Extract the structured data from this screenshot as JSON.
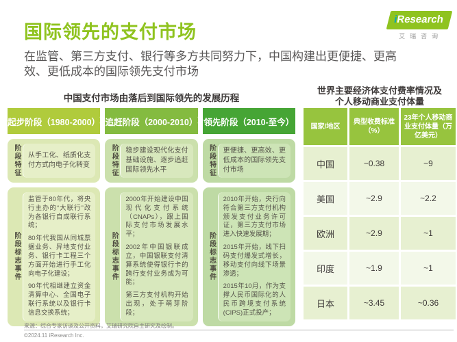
{
  "page": {
    "title": "国际领先的支付市场",
    "subtitle": "在监管、第三方支付、银行等多方共同努力下，中国构建出更便捷、更高效、更低成本的国际领先支付市场",
    "source": "来源：综合专家访谈及公开资料，艾瑞研究院自主研究及绘制。",
    "copyright": "©2024.11 iResearch Inc."
  },
  "logo": {
    "brand_i": "i",
    "brand": "Research",
    "subtext": "艾瑞咨询"
  },
  "colors": {
    "brand_green": "#8fc31f",
    "stage1_header": "#b0cb3c",
    "stage2_header": "#84bb40",
    "stage3_header": "#46a535",
    "table_header": "#97c43e",
    "row_odd": "#e7f0d1",
    "row_even": "#f3f8e9",
    "body_text": "#595757"
  },
  "timeline": {
    "title": "中国支付市场由落后到国际领先的发展历程",
    "feature_label": "阶段特征",
    "milestone_label": "阶段标志事件",
    "stages": [
      {
        "header": "起步阶段（1980-2000）",
        "feature": "从手工化、纸质化支付方式向电子化转变",
        "milestones": [
          "监管于80年代，将央行主办的“大联行”改为各银行自成联行系统；",
          "80年代我国从同城票据业务、异地支付业务、银行卡工程三个方面开始进行手工化向电子化建设；",
          "90年代相继建立资金清算中心、全国电子联行系统以及银行卡信息交换系统；"
        ]
      },
      {
        "header": "追赶阶段（2000-2010）",
        "feature": "稳步建设现代化支付基础设施、逐步追赶国际领先水平",
        "milestones": [
          "2000年开始建设中国现代化支付系统（CNAPs），跟上国际支付市场发展水平；",
          "2002年中国银联成立，中国银联支付清算系统使得银行卡的跨行支付业务成为可能；",
          "第三方支付机构开始出现，处于萌芽阶段；"
        ]
      },
      {
        "header": "领先阶段（2010-至今）",
        "feature": "更便捷、更高效、更低成本的国际领先支付市场",
        "milestones": [
          "2010年开始，央行向符合第三方支付机构颁发支付业务许可证，第三方支付市场进入快速发展期；",
          "2015年开始，线下扫码支付爆发式增长，移动支付向线下场景渗透；",
          "2015年10月，作为支撑人民币国际化的人民币跨境支付系统(CIPS)正式投产；"
        ]
      }
    ]
  },
  "fee_table": {
    "title": "世界主要经济体支付费率情况及\n个人移动商业支付体量",
    "headers": [
      "国家/地区",
      "典型收费标准（%）",
      "23年个人移动商业支付体量（万亿美元）"
    ],
    "rows": [
      [
        "中国",
        "~0.38",
        "~9"
      ],
      [
        "美国",
        "~2.9",
        "~2.2"
      ],
      [
        "欧洲",
        "~2.9",
        "~1"
      ],
      [
        "印度",
        "~1.9",
        "~1"
      ],
      [
        "日本",
        "~3.45",
        "~0.36"
      ]
    ]
  }
}
